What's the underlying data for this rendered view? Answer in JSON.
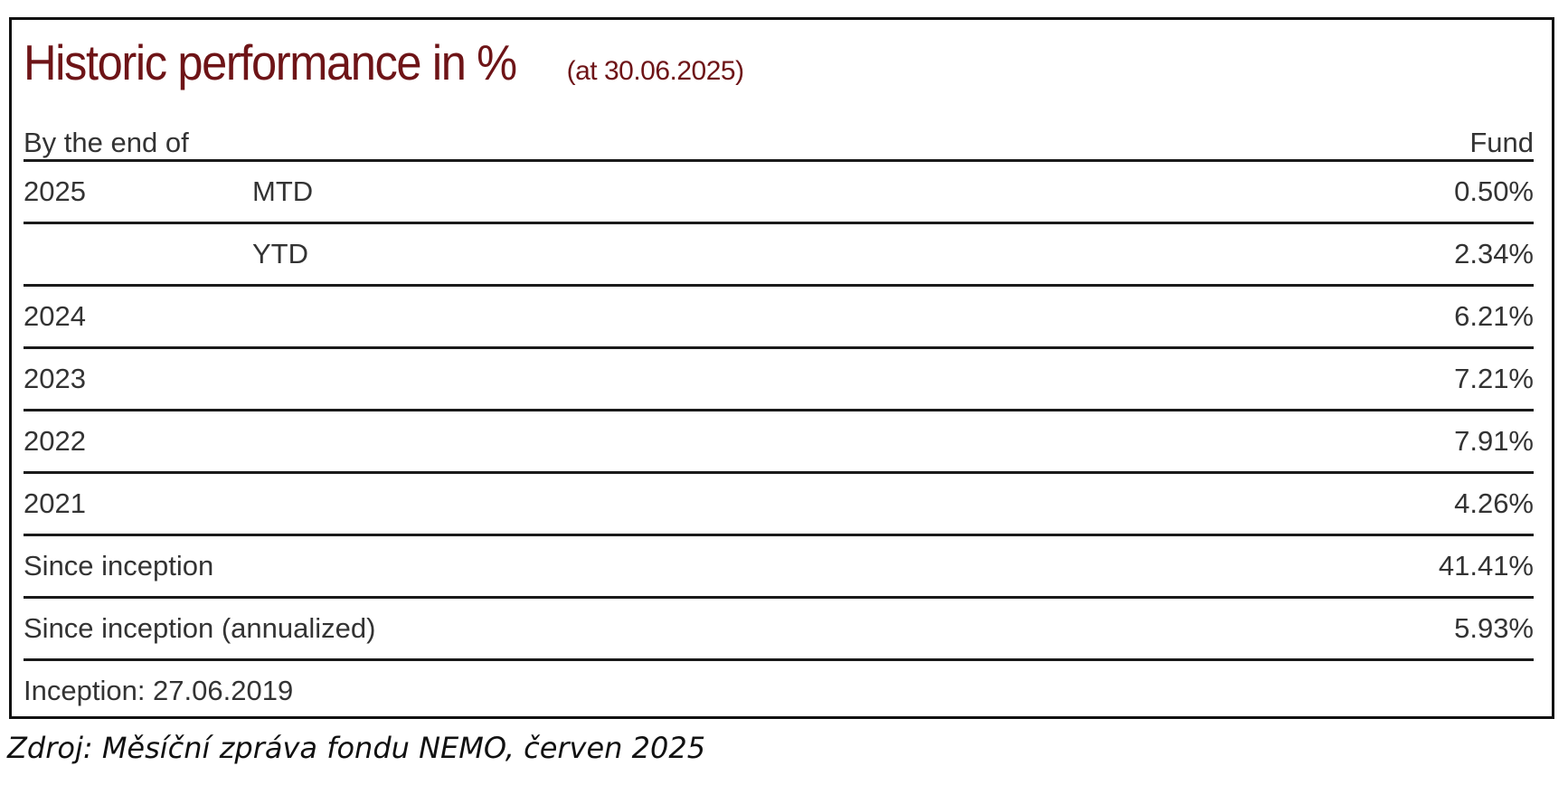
{
  "title": {
    "main": "Historic performance in %",
    "sub": "(at 30.06.2025)"
  },
  "table": {
    "header": {
      "label": "By the end of",
      "value": "Fund"
    },
    "rows": [
      {
        "label": "2025",
        "sub": "MTD",
        "value": "0.50%"
      },
      {
        "label": "",
        "sub": "YTD",
        "value": "2.34%"
      },
      {
        "label": "2024",
        "sub": "",
        "value": "6.21%"
      },
      {
        "label": "2023",
        "sub": "",
        "value": "7.21%"
      },
      {
        "label": "2022",
        "sub": "",
        "value": "7.91%"
      },
      {
        "label": "2021",
        "sub": "",
        "value": "4.26%"
      },
      {
        "label": "Since inception",
        "sub": "",
        "value": "41.41%"
      },
      {
        "label": "Since inception (annualized)",
        "sub": "",
        "value": "5.93%"
      }
    ],
    "footer": "Inception: 27.06.2019"
  },
  "caption": "Zdroj: Měsíční zpráva fondu NEMO, červen 2025",
  "colors": {
    "title": "#6e1417",
    "text": "#333333",
    "rule": "#1a1a1a",
    "border": "#111111"
  }
}
